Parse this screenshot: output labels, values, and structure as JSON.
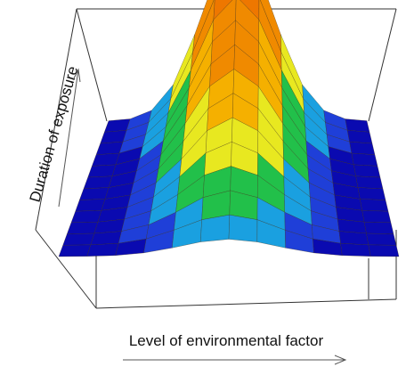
{
  "chart_data": {
    "type": "surface",
    "title": "",
    "xlabel": "Level of environmental factor",
    "ylabel": "Duration of exposure",
    "zlabel": "",
    "grid": false,
    "legend": "none",
    "x": [
      0,
      0.0833,
      0.1667,
      0.25,
      0.3333,
      0.4167,
      0.5,
      0.5833,
      0.6667,
      0.75,
      0.8333,
      0.9167,
      1
    ],
    "y": [
      0,
      0.0833,
      0.1667,
      0.25,
      0.3333,
      0.4167,
      0.5,
      0.5833,
      0.6667,
      0.75,
      0.8333,
      0.9167,
      1
    ],
    "surface_shape": "gaussian ridge along exposure, peak at mid level of environmental factor, height increasing with duration of exposure",
    "z_range": [
      0,
      1
    ],
    "colormap": [
      "#0a0ab0",
      "#1f3fd8",
      "#1aa0e0",
      "#22c04a",
      "#e8e820",
      "#f5b000",
      "#f08a00",
      "#ee7700"
    ]
  }
}
